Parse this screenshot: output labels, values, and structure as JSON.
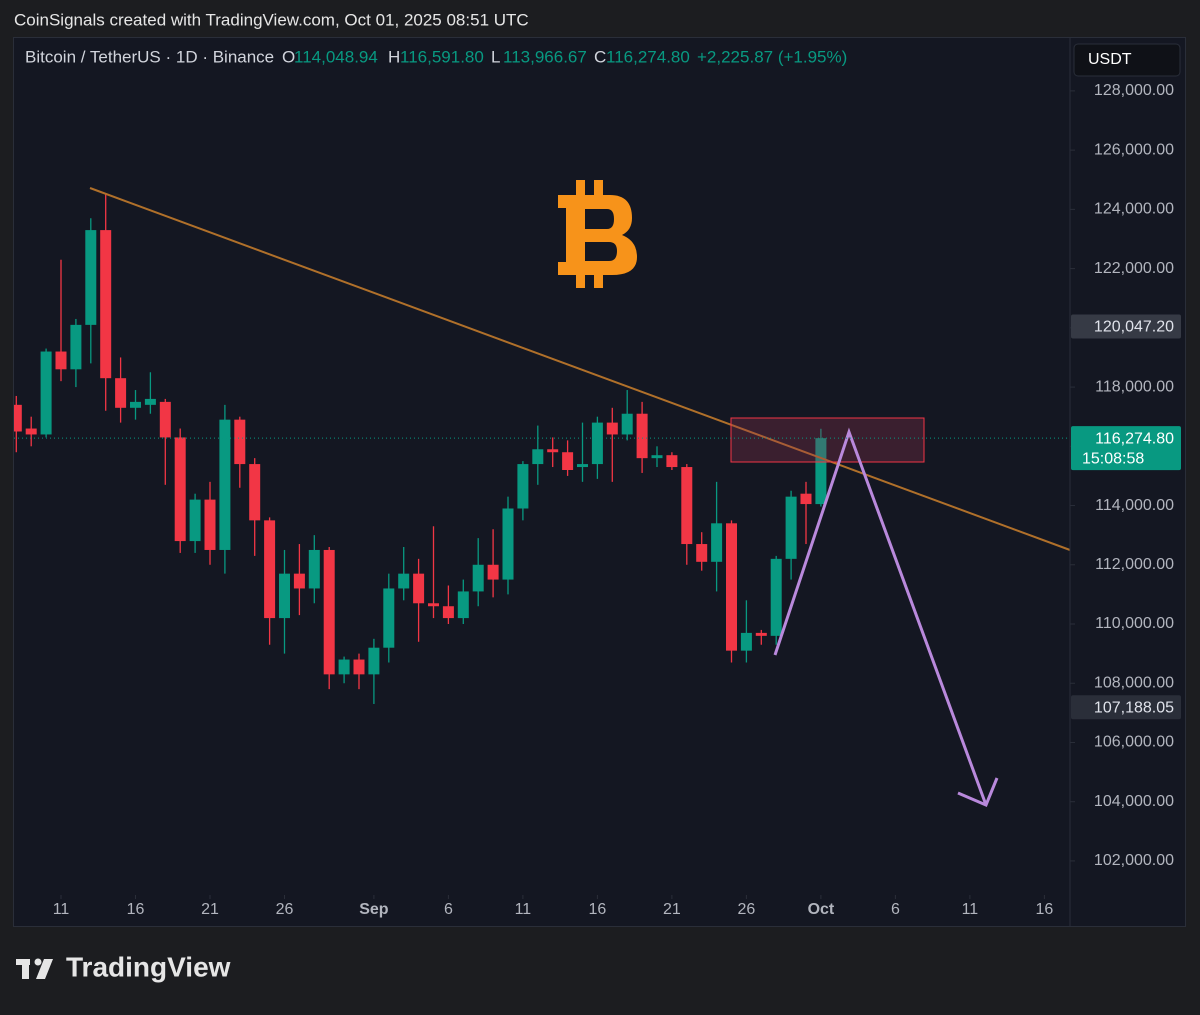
{
  "caption": "CoinSignals created with TradingView.com, Oct 01, 2025 08:51 UTC",
  "brand": "TradingView",
  "chart_data": {
    "type": "candlestick",
    "title": "Bitcoin / TetherUS · 1D · Binance",
    "ohlc_labels": [
      {
        "key": "O",
        "label": "114,048.94"
      },
      {
        "key": "H",
        "label": "116,591.80"
      },
      {
        "key": "L",
        "label": "113,966.67"
      },
      {
        "key": "C",
        "label": "116,274.80"
      }
    ],
    "change_label": "+2,225.87 (+1.95%)",
    "currency": "USDT",
    "up_color": "#089981",
    "down_color": "#f23645",
    "x": [
      "2025-08-08",
      "2025-08-09",
      "2025-08-10",
      "2025-08-11",
      "2025-08-12",
      "2025-08-13",
      "2025-08-14",
      "2025-08-15",
      "2025-08-16",
      "2025-08-17",
      "2025-08-18",
      "2025-08-19",
      "2025-08-20",
      "2025-08-21",
      "2025-08-22",
      "2025-08-23",
      "2025-08-24",
      "2025-08-25",
      "2025-08-26",
      "2025-08-27",
      "2025-08-28",
      "2025-08-29",
      "2025-08-30",
      "2025-08-31",
      "2025-09-01",
      "2025-09-02",
      "2025-09-03",
      "2025-09-04",
      "2025-09-05",
      "2025-09-06",
      "2025-09-07",
      "2025-09-08",
      "2025-09-09",
      "2025-09-10",
      "2025-09-11",
      "2025-09-12",
      "2025-09-13",
      "2025-09-14",
      "2025-09-15",
      "2025-09-16",
      "2025-09-17",
      "2025-09-18",
      "2025-09-19",
      "2025-09-20",
      "2025-09-21",
      "2025-09-22",
      "2025-09-23",
      "2025-09-24",
      "2025-09-25",
      "2025-09-26",
      "2025-09-27",
      "2025-09-28",
      "2025-09-29",
      "2025-09-30",
      "2025-10-01"
    ],
    "open": [
      117400,
      116600,
      116400,
      119200,
      118600,
      120100,
      123300,
      118300,
      117300,
      117400,
      117500,
      116300,
      112800,
      114200,
      112500,
      116900,
      115400,
      113500,
      110200,
      111700,
      111200,
      112500,
      108300,
      108800,
      108300,
      109200,
      111200,
      111700,
      110700,
      110600,
      110200,
      111100,
      112000,
      111500,
      113900,
      115400,
      115900,
      115800,
      115300,
      115400,
      116800,
      116400,
      117100,
      115600,
      115700,
      115300,
      112700,
      112100,
      113400,
      109100,
      109700,
      109600,
      112200,
      114400,
      114048.94
    ],
    "high": [
      117700,
      117000,
      119300,
      122300,
      120300,
      123700,
      124500,
      119000,
      117900,
      118500,
      117600,
      116600,
      114400,
      114800,
      117400,
      117000,
      115600,
      113600,
      112500,
      112700,
      113000,
      112600,
      108900,
      109000,
      109500,
      111700,
      112600,
      112200,
      113300,
      111300,
      111500,
      112900,
      113200,
      114300,
      115500,
      116700,
      116300,
      116200,
      116800,
      117000,
      117300,
      117900,
      117500,
      116000,
      115800,
      115400,
      113100,
      114800,
      113500,
      110800,
      109800,
      112300,
      114500,
      114800,
      116591.8
    ],
    "low": [
      115800,
      116000,
      116300,
      118200,
      118000,
      118800,
      117200,
      116800,
      116900,
      117100,
      114700,
      112400,
      112400,
      112000,
      111700,
      114600,
      112300,
      109300,
      109000,
      110300,
      110700,
      107800,
      108000,
      107800,
      107300,
      108700,
      110800,
      109400,
      110200,
      110000,
      110000,
      110600,
      110900,
      111000,
      113500,
      114700,
      115300,
      115000,
      114800,
      114900,
      114800,
      116200,
      115100,
      115300,
      115200,
      112000,
      111800,
      111100,
      108700,
      108700,
      109300,
      109300,
      111500,
      112700,
      113966.67
    ],
    "close": [
      116500,
      116400,
      119200,
      118600,
      120100,
      123300,
      118300,
      117300,
      117500,
      117600,
      116300,
      112800,
      114200,
      112500,
      116900,
      115400,
      113500,
      110200,
      111700,
      111200,
      112500,
      108300,
      108800,
      108300,
      109200,
      111200,
      111700,
      110700,
      110600,
      110200,
      111100,
      112000,
      111500,
      113900,
      115400,
      115900,
      115800,
      115200,
      115400,
      116800,
      116400,
      117100,
      115600,
      115700,
      115300,
      112700,
      112100,
      113400,
      109100,
      109700,
      109600,
      112200,
      114300,
      114050,
      116274.8
    ],
    "xlim": [
      "2025-08-08",
      "2025-10-18"
    ],
    "xticks": [
      {
        "value": "2025-08-11",
        "label": "11"
      },
      {
        "value": "2025-08-16",
        "label": "16"
      },
      {
        "value": "2025-08-21",
        "label": "21"
      },
      {
        "value": "2025-08-26",
        "label": "26"
      },
      {
        "value": "2025-09-01",
        "label": "Sep"
      },
      {
        "value": "2025-09-06",
        "label": "6"
      },
      {
        "value": "2025-09-11",
        "label": "11"
      },
      {
        "value": "2025-09-16",
        "label": "16"
      },
      {
        "value": "2025-09-21",
        "label": "21"
      },
      {
        "value": "2025-09-26",
        "label": "26"
      },
      {
        "value": "2025-10-01",
        "label": "Oct"
      },
      {
        "value": "2025-10-06",
        "label": "6"
      },
      {
        "value": "2025-10-11",
        "label": "11"
      },
      {
        "value": "2025-10-16",
        "label": "16"
      }
    ],
    "ylim": [
      100850,
      129820
    ],
    "yticks": [
      {
        "value": 102000,
        "label": "102,000.00"
      },
      {
        "value": 104000,
        "label": "104,000.00"
      },
      {
        "value": 106000,
        "label": "106,000.00"
      },
      {
        "value": 108000,
        "label": "108,000.00"
      },
      {
        "value": 110000,
        "label": "110,000.00"
      },
      {
        "value": 112000,
        "label": "112,000.00"
      },
      {
        "value": 114000,
        "label": "114,000.00"
      },
      {
        "value": 116000,
        "label": "116,000.00"
      },
      {
        "value": 118000,
        "label": "118,000.00"
      },
      {
        "value": 120000,
        "label": "120,000.00"
      },
      {
        "value": 122000,
        "label": "122,000.00"
      },
      {
        "value": 124000,
        "label": "124,000.00"
      },
      {
        "value": 126000,
        "label": "126,000.00"
      },
      {
        "value": 128000,
        "label": "128,000.00"
      }
    ],
    "price_markers": [
      {
        "value": 120047.2,
        "label": "120,047.20"
      },
      {
        "value": 107188.05,
        "label": "107,188.05"
      }
    ],
    "last_price": {
      "value": 116274.8,
      "label": "116,274.80",
      "countdown": "15:08:58"
    }
  }
}
